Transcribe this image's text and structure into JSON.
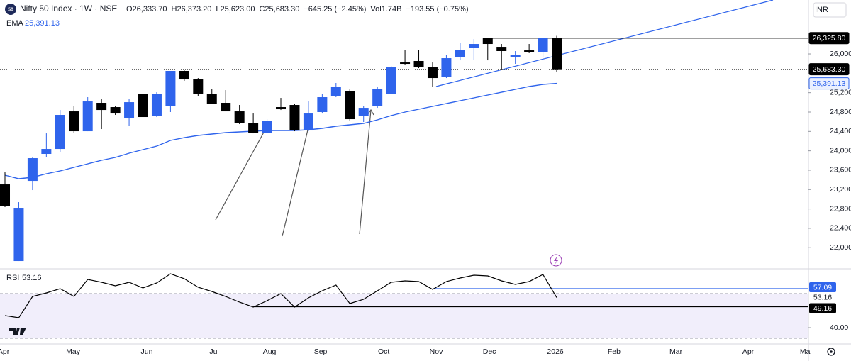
{
  "chart_data": [
    {
      "type": "candlestick",
      "symbol": "Nifty 50 Index · 1W · NSE",
      "logo": "50",
      "ohlc_text": [
        "O26,333.70",
        "H26,373.20",
        "L25,623.00",
        "C25,683.30",
        "−645.25 (−2.45%)",
        "Vol1.74B",
        "−193.55 (−0.75%)"
      ],
      "currency": "INR",
      "categories": [
        null,
        null,
        null,
        null,
        null,
        null,
        null,
        null,
        null,
        null,
        null,
        null,
        null,
        null,
        null,
        null,
        null,
        null,
        null,
        null,
        null,
        null,
        null,
        null,
        null,
        null,
        null,
        null,
        null,
        null,
        null,
        null,
        null,
        null,
        null,
        null,
        null,
        null,
        null,
        null,
        null
      ],
      "open": [
        23306,
        21725,
        23379,
        23936,
        24038,
        24814,
        24404,
        24990,
        24902,
        24668,
        25166,
        24726,
        24917,
        25649,
        25473,
        25166,
        24990,
        24814,
        24580,
        24375,
        24902,
        24946,
        24419,
        24800,
        25122,
        25239,
        24726,
        24917,
        25166,
        25824,
        25854,
        25722,
        25531,
        25941,
        26132,
        26337,
        26146,
        25941,
        26073,
        26044,
        26333.7
      ],
      "high": [
        23555,
        22940,
        23862,
        24360,
        24843,
        24917,
        25107,
        25063,
        24917,
        25063,
        25209,
        25209,
        25649,
        25678,
        25502,
        25283,
        25253,
        24946,
        24770,
        24653,
        25092,
        24975,
        25019,
        25166,
        25400,
        25268,
        24917,
        25327,
        25751,
        26088,
        26088,
        25824,
        25971,
        26234,
        26307,
        26337,
        26205,
        26059,
        26205,
        26337,
        26373.2
      ],
      "low": [
        22838,
        21725,
        23189,
        23863,
        23965,
        24375,
        24404,
        24448,
        24741,
        24507,
        24478,
        24697,
        24800,
        25444,
        25136,
        24961,
        24814,
        24551,
        24360,
        24375,
        24843,
        24404,
        24404,
        24770,
        25107,
        24624,
        24595,
        24887,
        25166,
        25766,
        25707,
        25327,
        25502,
        25868,
        25868,
        25868,
        25678,
        25795,
        26015,
        25941,
        25623
      ],
      "close": [
        22867,
        22823,
        23848,
        24038,
        24741,
        24404,
        25019,
        24843,
        24770,
        25004,
        24697,
        25166,
        25649,
        25473,
        25166,
        24961,
        24814,
        24580,
        24375,
        24624,
        24858,
        24419,
        24770,
        25107,
        25327,
        24653,
        24887,
        25283,
        25722,
        25795,
        25722,
        25502,
        25912,
        26088,
        26205,
        26205,
        26059,
        25985,
        26044,
        26337,
        25683.3
      ],
      "up_color": "#2f64ec",
      "down_color": "#000000",
      "series": [
        {
          "name": "EMA",
          "color": "#2f64ec",
          "value_label": "25,391.13",
          "values": [
            23497,
            23423,
            23453,
            23526,
            23584,
            23658,
            23731,
            23804,
            23863,
            23950,
            24024,
            24097,
            24214,
            24272,
            24316,
            24346,
            24375,
            24390,
            24404,
            24419,
            24419,
            24419,
            24434,
            24463,
            24507,
            24536,
            24565,
            24639,
            24726,
            24800,
            24858,
            24917,
            24975,
            25034,
            25092,
            25151,
            25209,
            25268,
            25327,
            25371,
            25391.13
          ]
        }
      ],
      "price_labels": [
        {
          "value": 26325.8,
          "label": "26,325.80"
        },
        {
          "value": 25683.3,
          "label": "25,683.30"
        },
        {
          "value": 25391.13,
          "label": "25,391.13"
        }
      ],
      "xlim": [
        -0.36,
        58.25
      ],
      "ylim": [
        21579,
        27113
      ],
      "yticks": [
        {
          "value": 22000,
          "label": "22,000.00"
        },
        {
          "value": 22400,
          "label": "22,400.00"
        },
        {
          "value": 22800,
          "label": "22,800.00"
        },
        {
          "value": 23200,
          "label": "23,200.00"
        },
        {
          "value": 23600,
          "label": "23,600.00"
        },
        {
          "value": 24000,
          "label": "24,000.00"
        },
        {
          "value": 24400,
          "label": "24,400.00"
        },
        {
          "value": 24800,
          "label": "24,800.00"
        },
        {
          "value": 25200,
          "label": "25,200.00"
        },
        {
          "value": 26000,
          "label": "26,000.00"
        }
      ]
    },
    {
      "type": "line",
      "title": "RSI",
      "last_value_label": "53.16",
      "categories": [
        null,
        null,
        null,
        null,
        null,
        null,
        null,
        null,
        null,
        null,
        null,
        null,
        null,
        null,
        null,
        null,
        null,
        null,
        null,
        null,
        null,
        null,
        null,
        null,
        null,
        null,
        null,
        null,
        null,
        null,
        null,
        null,
        null,
        null,
        null,
        null,
        null,
        null,
        null,
        null,
        null
      ],
      "series": [
        {
          "name": "RSI",
          "color": "#000000",
          "values": [
            45.28,
            44.35,
            53.66,
            55.22,
            57.08,
            53.66,
            61.12,
            59.88,
            58.32,
            59.88,
            57.39,
            59.57,
            63.6,
            61.43,
            57.7,
            55.84,
            53.66,
            51.18,
            49.0,
            51.8,
            54.91,
            49.0,
            53.04,
            56.15,
            58.63,
            50.56,
            52.42,
            56.15,
            59.88,
            60.5,
            60.19,
            56.77,
            60.19,
            61.74,
            62.98,
            62.67,
            60.5,
            58.94,
            60.19,
            63.29,
            53.16
          ]
        }
      ],
      "levels": [
        {
          "value": 57.09,
          "label": "57.09",
          "color": "#2f64ec"
        },
        {
          "value": 49.16,
          "label": "49.16",
          "color": "#000000"
        }
      ],
      "xlim": [
        -0.36,
        58.25
      ],
      "ylim": [
        32.86,
        65.47
      ],
      "yticks": [
        {
          "value": 40,
          "label": "40.00"
        }
      ],
      "xticks": [
        {
          "value": -0.1,
          "label": "Apr"
        },
        {
          "value": 4.94,
          "label": "May"
        },
        {
          "value": 10.28,
          "label": "Jun"
        },
        {
          "value": 15.17,
          "label": "Jul"
        },
        {
          "value": 19.18,
          "label": "Aug"
        },
        {
          "value": 22.88,
          "label": "Sep"
        },
        {
          "value": 27.46,
          "label": "Oct"
        },
        {
          "value": 31.26,
          "label": "Nov"
        },
        {
          "value": 35.12,
          "label": "Dec"
        },
        {
          "value": 39.9,
          "label": "2026"
        },
        {
          "value": 44.16,
          "label": "Feb"
        },
        {
          "value": 48.64,
          "label": "Mar"
        },
        {
          "value": 53.88,
          "label": "Apr"
        },
        {
          "value": 58.0,
          "label": "Ma"
        }
      ]
    }
  ]
}
